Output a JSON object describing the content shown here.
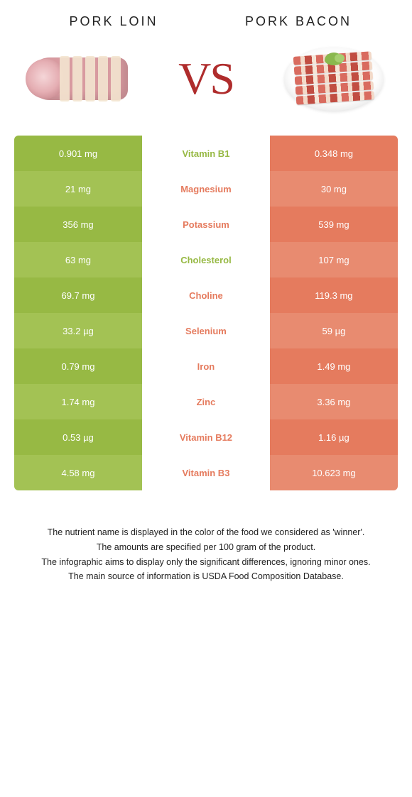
{
  "header": {
    "left_title": "Pork loin",
    "right_title": "Pork bacon",
    "vs_text": "VS"
  },
  "colors": {
    "left_primary": "#97b944",
    "left_alt": "#a3c254",
    "right_primary": "#e57b5e",
    "right_alt": "#e88b70",
    "winner_left_text": "#97b944",
    "winner_right_text": "#e57b5e"
  },
  "nutrients": [
    {
      "name": "Vitamin B1",
      "left": "0.901 mg",
      "right": "0.348 mg",
      "winner": "left"
    },
    {
      "name": "Magnesium",
      "left": "21 mg",
      "right": "30 mg",
      "winner": "right"
    },
    {
      "name": "Potassium",
      "left": "356 mg",
      "right": "539 mg",
      "winner": "right"
    },
    {
      "name": "Cholesterol",
      "left": "63 mg",
      "right": "107 mg",
      "winner": "left"
    },
    {
      "name": "Choline",
      "left": "69.7 mg",
      "right": "119.3 mg",
      "winner": "right"
    },
    {
      "name": "Selenium",
      "left": "33.2 µg",
      "right": "59 µg",
      "winner": "right"
    },
    {
      "name": "Iron",
      "left": "0.79 mg",
      "right": "1.49 mg",
      "winner": "right"
    },
    {
      "name": "Zinc",
      "left": "1.74 mg",
      "right": "3.36 mg",
      "winner": "right"
    },
    {
      "name": "Vitamin B12",
      "left": "0.53 µg",
      "right": "1.16 µg",
      "winner": "right"
    },
    {
      "name": "Vitamin B3",
      "left": "4.58 mg",
      "right": "10.623 mg",
      "winner": "right"
    }
  ],
  "footer": {
    "line1": "The nutrient name is displayed in the color of the food we considered as 'winner'.",
    "line2": "The amounts are specified per 100 gram of the product.",
    "line3": "The infographic aims to display only the significant differences, ignoring minor ones.",
    "line4": "The main source of information is USDA Food Composition Database."
  }
}
